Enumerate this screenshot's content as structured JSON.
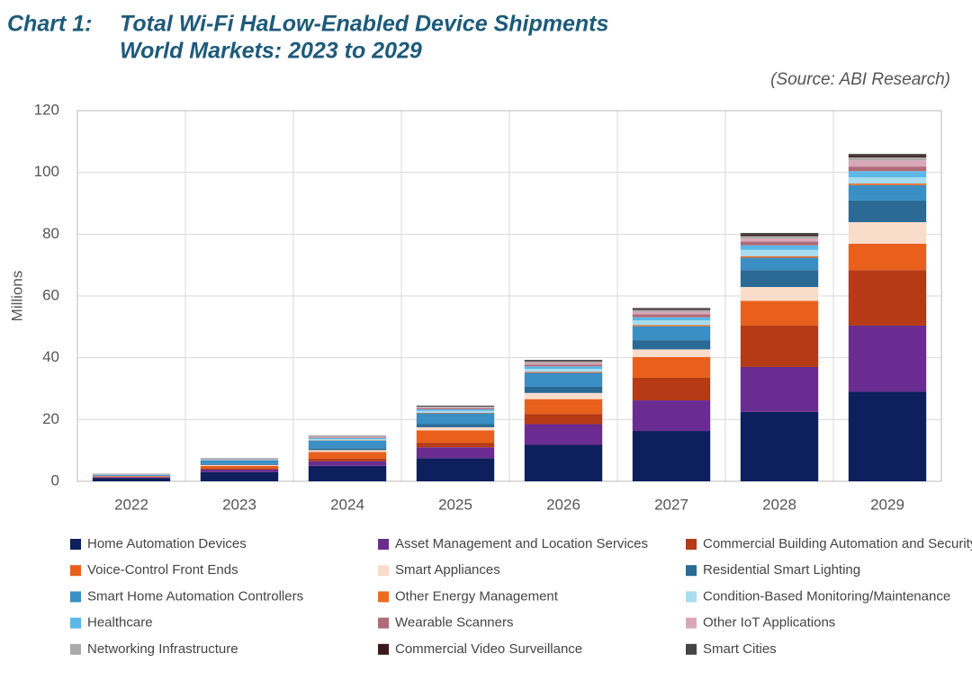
{
  "chart_data": {
    "type": "stacked_bar",
    "title_prefix": "Chart 1:",
    "title": "Total Wi-Fi HaLow-Enabled Device Shipments",
    "subtitle": "World Markets: 2023 to 2029",
    "source": "(Source: ABI Research)",
    "y_label": "Millions",
    "categories": [
      "2022",
      "2023",
      "2024",
      "2025",
      "2026",
      "2027",
      "2028",
      "2029"
    ],
    "ylim": [
      0,
      120
    ],
    "yticks": [
      0,
      20,
      40,
      60,
      80,
      100,
      120
    ],
    "grid": true,
    "series": [
      {
        "name": "Home Automation Devices",
        "color": "#0d1f5c",
        "values": [
          1,
          3,
          5,
          7.5,
          11.8,
          16.3,
          22.5,
          29
        ]
      },
      {
        "name": "Asset Management and Location Services",
        "color": "#6a2c91",
        "values": [
          0.3,
          0.8,
          1.5,
          3.5,
          6.7,
          9.9,
          14.5,
          21.4
        ]
      },
      {
        "name": "Commercial Building Automation and Security",
        "color": "#b53a15",
        "values": [
          0.1,
          0.4,
          0.8,
          1.5,
          3.3,
          7.3,
          13.4,
          18
        ]
      },
      {
        "name": "Voice-Control Front Ends",
        "color": "#e8601c",
        "values": [
          0.2,
          0.8,
          2.2,
          4,
          4.8,
          6.7,
          8,
          8.5
        ]
      },
      {
        "name": "Smart Appliances",
        "color": "#fadccb",
        "values": [
          0.1,
          0.3,
          0.6,
          1,
          2,
          2.5,
          4.5,
          7
        ]
      },
      {
        "name": "Residential Smart Lighting",
        "color": "#2b6a94",
        "values": [
          0.1,
          0.3,
          0.6,
          1,
          2,
          3,
          5.5,
          7
        ]
      },
      {
        "name": "Smart Home Automation Controllers",
        "color": "#3a8fc4",
        "values": [
          0.3,
          1.2,
          2.5,
          3.5,
          4.5,
          4.5,
          4,
          5
        ]
      },
      {
        "name": "Other Energy Management",
        "color": "#ec6b24",
        "values": [
          0.02,
          0.05,
          0.1,
          0.2,
          0.3,
          0.4,
          0.5,
          0.5
        ]
      },
      {
        "name": "Condition-Based Monitoring/Maintenance",
        "color": "#a8dcf0",
        "values": [
          0.1,
          0.2,
          0.4,
          0.6,
          1,
          1.5,
          2,
          2
        ]
      },
      {
        "name": "Healthcare",
        "color": "#5bb8e8",
        "values": [
          0.05,
          0.1,
          0.3,
          0.5,
          0.8,
          1,
          1.5,
          2
        ]
      },
      {
        "name": "Wearable Scanners",
        "color": "#b06a78",
        "values": [
          0.05,
          0.1,
          0.2,
          0.3,
          0.6,
          1,
          1.2,
          1.5
        ]
      },
      {
        "name": "Other IoT Applications",
        "color": "#d8a8b8",
        "values": [
          0.05,
          0.1,
          0.2,
          0.3,
          0.5,
          0.8,
          1,
          2
        ]
      },
      {
        "name": "Networking Infrastructure",
        "color": "#aaaaaa",
        "values": [
          0.1,
          0.1,
          0.2,
          0.3,
          0.5,
          0.6,
          0.8,
          1
        ]
      },
      {
        "name": "Commercial Video Surveillance",
        "color": "#3a1a1a",
        "values": [
          0.01,
          0.02,
          0.05,
          0.1,
          0.2,
          0.3,
          0.5,
          0.6
        ]
      },
      {
        "name": "Smart Cities",
        "color": "#444444",
        "values": [
          0.02,
          0.05,
          0.1,
          0.2,
          0.3,
          0.3,
          0.5,
          0.5
        ]
      }
    ]
  }
}
